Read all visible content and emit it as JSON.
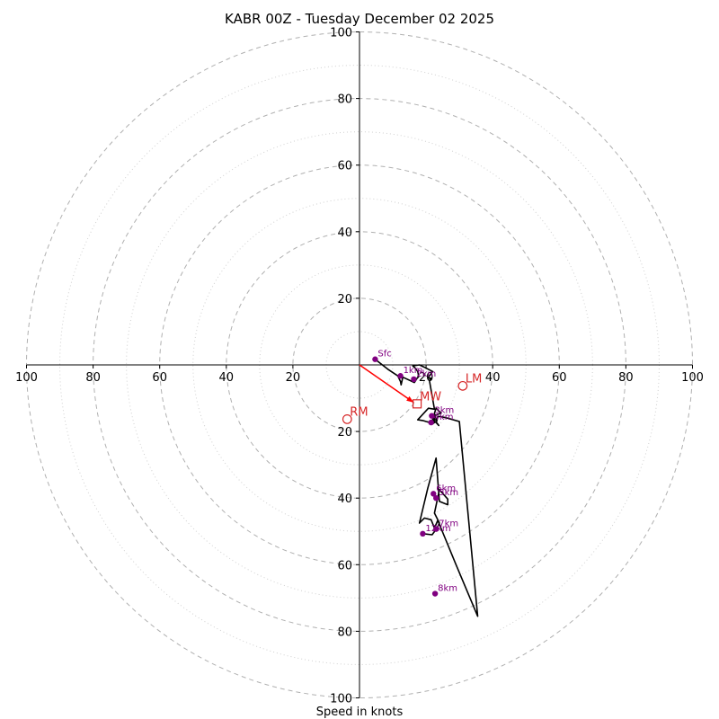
{
  "chart_data": {
    "type": "line",
    "title": "KABR 00Z - Tuesday December 02 2025",
    "xlabel": "Speed in knots",
    "ylabel": "",
    "units": "knots",
    "xlim": [
      -100,
      100
    ],
    "ylim": [
      -100,
      100
    ],
    "major_rings": [
      20,
      40,
      60,
      80,
      100
    ],
    "minor_rings": [
      10,
      30,
      50,
      70,
      90
    ],
    "x_tick_labels": [
      "100",
      "80",
      "60",
      "40",
      "20",
      "20",
      "40",
      "60",
      "80",
      "100"
    ],
    "x_tick_values": [
      -100,
      -80,
      -60,
      -40,
      -20,
      20,
      40,
      60,
      80,
      100
    ],
    "y_tick_labels": [
      "100",
      "80",
      "60",
      "40",
      "20",
      "20",
      "40",
      "60",
      "80",
      "100"
    ],
    "y_tick_values": [
      100,
      80,
      60,
      40,
      20,
      -20,
      -40,
      -60,
      -80,
      -100
    ],
    "hodograph": {
      "name": "wind profile",
      "color": "#000000",
      "u": [
        4.7,
        8.5,
        11.5,
        12.3,
        12.5,
        13.0,
        16.5,
        17.3,
        17.8,
        17.5,
        16.8,
        16.0,
        18.0,
        19.5,
        22.0,
        20.5,
        21.5,
        21.0,
        22.5,
        20.7,
        17.5,
        19.0,
        20.0,
        20.7,
        21.3,
        21.8,
        22.3,
        22.7,
        22.5,
        23.0,
        24.5,
        23.0,
        22.0,
        23.3,
        23.0,
        23.0,
        23.8,
        23.3,
        22.5,
        22.3,
        22.8,
        23.0,
        23.5,
        24.3,
        26.5,
        30.0,
        35.5,
        29.0,
        23.5,
        22.5,
        21.5,
        19.5,
        18.0,
        20.5,
        23.0,
        24.0,
        26.5,
        26.5,
        24.0,
        22.5,
        24.0,
        23.3,
        21.8,
        19.0
      ],
      "v": [
        1.7,
        -1.3,
        -3.3,
        -5.0,
        -6.0,
        -3.7,
        -5.3,
        -4.0,
        -3.5,
        -2.0,
        -1.0,
        -0.3,
        -0.0,
        -0.7,
        -2.0,
        -4.0,
        -4.0,
        -4.7,
        -13.3,
        -13.0,
        -16.5,
        -16.7,
        -17.0,
        -17.2,
        -17.0,
        -16.7,
        -15.7,
        -16.0,
        -14.5,
        -13.0,
        -14.5,
        -15.0,
        -17.7,
        -16.7,
        -17.3,
        -17.3,
        -18.2,
        -17.5,
        -17.0,
        -16.5,
        -16.5,
        -16.5,
        -15.5,
        -15.5,
        -16.0,
        -17.0,
        -75.5,
        -60.0,
        -46.7,
        -49.0,
        -46.5,
        -46.0,
        -47.5,
        -37.0,
        -28.0,
        -41.0,
        -42.0,
        -40.3,
        -37.5,
        -44.5,
        -47.5,
        -49.0,
        -51.0,
        -50.7
      ]
    },
    "height_markers": [
      {
        "label": "Sfc",
        "u": 4.7,
        "v": 1.7
      },
      {
        "label": "1km",
        "u": 12.3,
        "v": -3.3
      },
      {
        "label": "2km",
        "u": 16.3,
        "v": -4.3
      },
      {
        "label": "3km",
        "u": 21.7,
        "v": -15.3
      },
      {
        "label": "4km",
        "u": 21.5,
        "v": -17.3
      },
      {
        "label": "6km",
        "u": 22.2,
        "v": -38.7
      },
      {
        "label": "5km",
        "u": 23.0,
        "v": -40.0
      },
      {
        "label": "7km",
        "u": 23.0,
        "v": -49.3
      },
      {
        "label": "12km",
        "u": 19.0,
        "v": -50.7
      },
      {
        "label": "8km",
        "u": 22.7,
        "v": -68.7
      }
    ],
    "storm_motions": [
      {
        "label": "RM",
        "marker": "circle",
        "u": -3.7,
        "v": -16.3
      },
      {
        "label": "LM",
        "marker": "circle",
        "u": 31.0,
        "v": -6.3
      },
      {
        "label": "MW",
        "marker": "square",
        "u": 17.3,
        "v": -11.7
      }
    ],
    "shear_vector": {
      "from_u": 0,
      "from_v": 0,
      "to_u": 16.3,
      "to_v": -11.3,
      "color": "#ff0000"
    },
    "colors": {
      "marker": "#800080",
      "storm_motion": "#d62728",
      "rings": "#b0b0b0"
    }
  }
}
